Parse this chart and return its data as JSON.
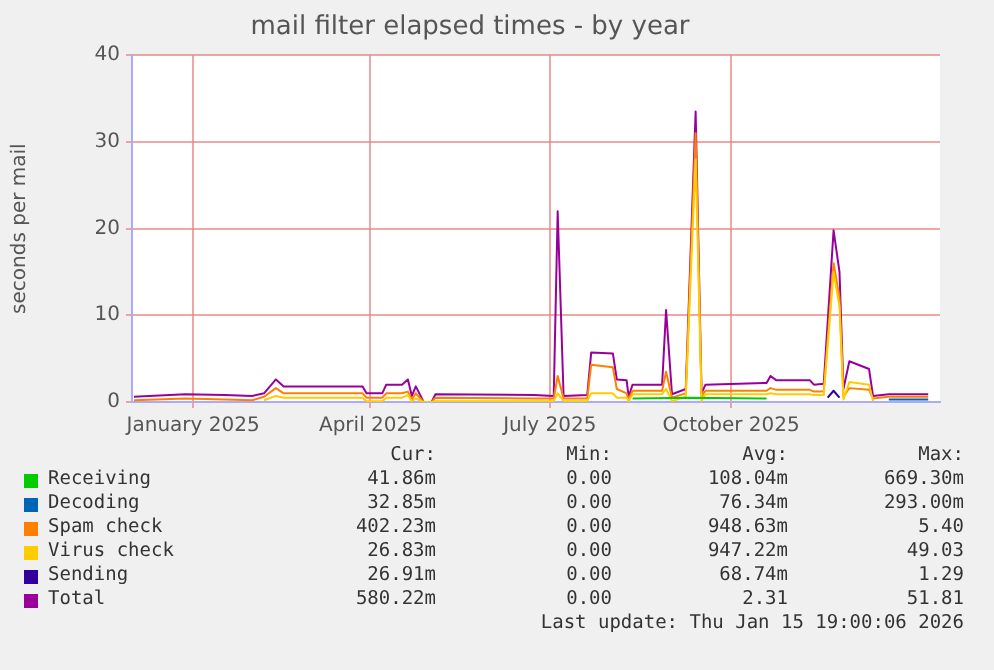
{
  "chart_data": {
    "type": "line",
    "title": "mail filter elapsed times - by year",
    "ylabel": "seconds per mail",
    "xlim": [
      "2024-12-01",
      "2026-01-15"
    ],
    "xticks": [
      {
        "value": "2025-01-01",
        "label": "January 2025"
      },
      {
        "value": "2025-04-01",
        "label": "April 2025"
      },
      {
        "value": "2025-07-01",
        "label": "July 2025"
      },
      {
        "value": "2025-10-01",
        "label": "October 2025"
      }
    ],
    "ylim": [
      0,
      40
    ],
    "yticks": [
      0,
      10,
      20,
      30,
      40
    ],
    "grid": true,
    "legend": "bottom",
    "marker": "none",
    "series": [
      {
        "name": "Receiving",
        "color": "#00cc00",
        "x": [
          "2025-08-12",
          "2025-09-10",
          "2025-10-19"
        ],
        "values": [
          0.4,
          0.5,
          0.4
        ]
      },
      {
        "name": "Decoding",
        "color": "#0066b3",
        "x": [
          "2025-12-20",
          "2026-01-09"
        ],
        "values": [
          0.3,
          0.3
        ]
      },
      {
        "name": "Spam check",
        "color": "#ff8000",
        "x": [
          "2024-12-02",
          "2024-12-28",
          "2025-01-17",
          "2025-01-31",
          "2025-02-06",
          "2025-02-12",
          "2025-02-16",
          "2025-03-28",
          "2025-03-30",
          "2025-04-07",
          "2025-04-09",
          "2025-04-17",
          "2025-04-20",
          "2025-04-22",
          "2025-04-24",
          "2025-04-28",
          "2025-05-02",
          "2025-05-04",
          "2025-06-23",
          "2025-07-03",
          "2025-07-05",
          "2025-07-08",
          "2025-07-20",
          "2025-07-22",
          "2025-08-02",
          "2025-08-04",
          "2025-08-09",
          "2025-08-10",
          "2025-08-12",
          "2025-08-27",
          "2025-08-29",
          "2025-09-01",
          "2025-09-08",
          "2025-09-13",
          "2025-09-16",
          "2025-09-18",
          "2025-10-19",
          "2025-10-21",
          "2025-10-24",
          "2025-11-10",
          "2025-11-12",
          "2025-11-17",
          "2025-11-22",
          "2025-11-25",
          "2025-11-27",
          "2025-11-30",
          "2025-12-10",
          "2025-12-12",
          "2025-12-20",
          "2026-01-09"
        ],
        "values": [
          0.2,
          0.4,
          0.3,
          0.2,
          0.6,
          1.6,
          1.0,
          1.0,
          0.5,
          0.5,
          1.0,
          1.0,
          1.2,
          0.3,
          1.0,
          0,
          0,
          0.5,
          0.4,
          0.4,
          3,
          0.4,
          0.4,
          4.3,
          4.0,
          1.5,
          1.0,
          0.3,
          1.3,
          1.3,
          3.5,
          0.5,
          1.0,
          31,
          0.6,
          1.3,
          1.3,
          1.6,
          1.4,
          1.4,
          1.2,
          1.2,
          16,
          12,
          0.6,
          1.6,
          1.4,
          0.4,
          0.6,
          0.6
        ]
      },
      {
        "name": "Virus check",
        "color": "#ffcc00",
        "x": [
          "2025-02-06",
          "2025-02-12",
          "2025-02-16",
          "2025-03-28",
          "2025-03-30",
          "2025-04-07",
          "2025-04-09",
          "2025-04-17",
          "2025-04-20",
          "2025-04-22",
          "2025-04-24",
          "2025-04-28",
          "2025-05-02",
          "2025-05-04",
          "2025-06-23",
          "2025-07-03",
          "2025-07-05",
          "2025-07-08",
          "2025-07-20",
          "2025-07-22",
          "2025-08-02",
          "2025-08-04",
          "2025-08-09",
          "2025-08-10",
          "2025-08-12",
          "2025-08-27",
          "2025-08-29",
          "2025-09-01",
          "2025-09-08",
          "2025-09-13",
          "2025-09-16",
          "2025-09-18",
          "2025-10-19",
          "2025-10-21",
          "2025-10-24",
          "2025-11-10",
          "2025-11-12",
          "2025-11-17",
          "2025-11-22",
          "2025-11-25",
          "2025-11-27",
          "2025-11-30",
          "2025-12-10",
          "2025-12-12"
        ],
        "values": [
          0.2,
          0.7,
          0.5,
          0.5,
          0.1,
          0.1,
          0.5,
          0.5,
          0.8,
          0.1,
          0.4,
          0,
          0,
          0.1,
          0.1,
          0.1,
          1.0,
          0.1,
          0.1,
          1.0,
          1.0,
          0.5,
          0.5,
          0.1,
          0.9,
          0.9,
          1.5,
          0.1,
          0.6,
          28,
          0.1,
          0.9,
          0.9,
          1.0,
          0.9,
          0.9,
          0.8,
          0.8,
          15,
          11,
          0.3,
          2.3,
          2.0,
          0.1
        ]
      },
      {
        "name": "Sending",
        "color": "#330099",
        "x": [
          "2025-11-19",
          "2025-11-22",
          "2025-11-25"
        ],
        "values": [
          0.5,
          1.3,
          0.5
        ]
      },
      {
        "name": "Total",
        "color": "#990099",
        "x": [
          "2024-12-02",
          "2024-12-28",
          "2025-01-17",
          "2025-01-31",
          "2025-02-06",
          "2025-02-12",
          "2025-02-16",
          "2025-03-28",
          "2025-03-30",
          "2025-04-07",
          "2025-04-09",
          "2025-04-17",
          "2025-04-20",
          "2025-04-22",
          "2025-04-24",
          "2025-04-28",
          "2025-05-02",
          "2025-05-04",
          "2025-06-23",
          "2025-07-03",
          "2025-07-05",
          "2025-07-08",
          "2025-07-20",
          "2025-07-22",
          "2025-08-02",
          "2025-08-04",
          "2025-08-09",
          "2025-08-10",
          "2025-08-12",
          "2025-08-27",
          "2025-08-29",
          "2025-09-01",
          "2025-09-08",
          "2025-09-13",
          "2025-09-16",
          "2025-09-18",
          "2025-10-19",
          "2025-10-21",
          "2025-10-24",
          "2025-11-10",
          "2025-11-12",
          "2025-11-17",
          "2025-11-22",
          "2025-11-25",
          "2025-11-27",
          "2025-11-30",
          "2025-12-10",
          "2025-12-12",
          "2025-12-20",
          "2026-01-09"
        ],
        "values": [
          0.6,
          0.9,
          0.8,
          0.7,
          1.0,
          2.6,
          1.8,
          1.8,
          1.0,
          1.0,
          2.0,
          2.0,
          2.6,
          0.7,
          1.8,
          0,
          0,
          0.9,
          0.8,
          0.7,
          22,
          0.7,
          0.8,
          5.7,
          5.6,
          2.6,
          2.5,
          0.6,
          2.0,
          2.0,
          10.6,
          0.9,
          1.5,
          33.5,
          1.0,
          2.0,
          2.2,
          3.0,
          2.5,
          2.5,
          2.0,
          2.1,
          19.8,
          15,
          1.5,
          4.7,
          3.8,
          0.7,
          0.9,
          0.9
        ]
      }
    ],
    "annotations": [
      "Cur:",
      "Min:",
      "Avg:",
      "Max:",
      "41.86m",
      "0.00",
      "108.04m",
      "669.30m",
      "32.85m",
      "0.00",
      "76.34m",
      "293.00m",
      "402.23m",
      "0.00",
      "948.63m",
      "5.40",
      "26.83m",
      "0.00",
      "947.22m",
      "49.03",
      "26.91m",
      "0.00",
      "68.74m",
      "1.29",
      "580.22m",
      "0.00",
      "2.31",
      "51.81",
      "Last update: Thu Jan 15 19:00:06 2026"
    ]
  }
}
